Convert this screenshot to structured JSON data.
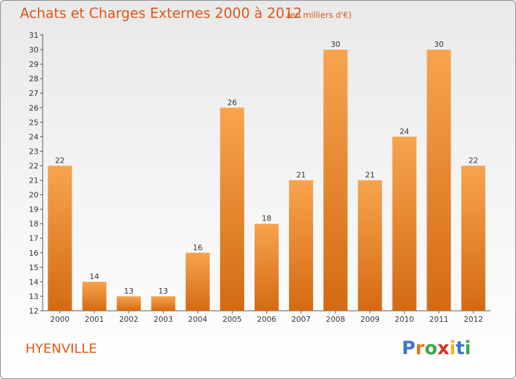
{
  "title": "Achats et Charges Externes 2000 à 2012",
  "subtitle": "(en milliers d'€)",
  "location": "HYENVILLE",
  "logo": {
    "letters": [
      "P",
      "r",
      "o",
      "x",
      "i",
      "t",
      "i"
    ],
    "colors": [
      "#3b78c9",
      "#e07a1c",
      "#3aa84a",
      "#d6332b",
      "#e9b81c",
      "#3b78c9",
      "#3aa84a"
    ]
  },
  "colors": {
    "bar_light": "#f7a44e",
    "bar_dark": "#d46a13",
    "text": "#e0571a"
  },
  "chart_data": {
    "type": "bar",
    "title": "Achats et Charges Externes 2000 à 2012",
    "subtitle": "(en milliers d'€)",
    "xlabel": "",
    "ylabel": "",
    "categories": [
      "2000",
      "2001",
      "2002",
      "2003",
      "2004",
      "2005",
      "2006",
      "2007",
      "2008",
      "2009",
      "2010",
      "2011",
      "2012"
    ],
    "values": [
      22,
      14,
      13,
      13,
      16,
      26,
      18,
      21,
      30,
      21,
      24,
      30,
      22
    ],
    "ylim": [
      12,
      31
    ],
    "yticks": [
      12,
      13,
      14,
      15,
      16,
      17,
      18,
      19,
      20,
      21,
      22,
      23,
      24,
      25,
      26,
      27,
      28,
      29,
      30,
      31
    ],
    "grid": false,
    "legend": "none"
  }
}
